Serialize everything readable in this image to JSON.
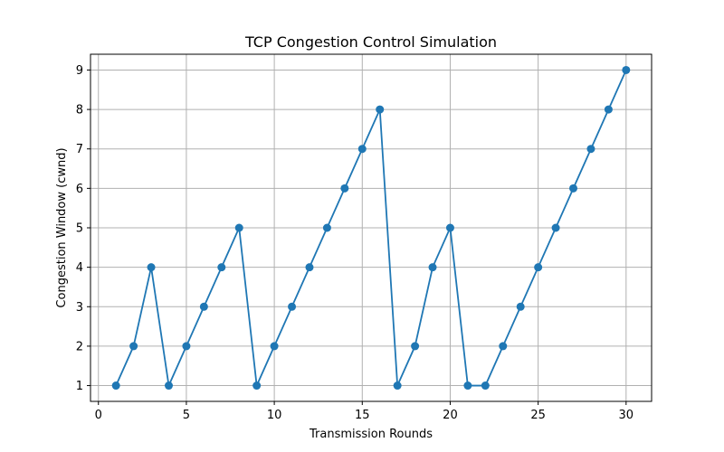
{
  "chart_data": {
    "type": "line",
    "title": "TCP Congestion Control Simulation",
    "xlabel": "Transmission Rounds",
    "ylabel": "Congestion Window (cwnd)",
    "xlim": [
      -0.45,
      31.45
    ],
    "ylim": [
      0.6,
      9.4
    ],
    "xticks": [
      0,
      5,
      10,
      15,
      20,
      25,
      30
    ],
    "yticks": [
      1,
      2,
      3,
      4,
      5,
      6,
      7,
      8,
      9
    ],
    "grid": true,
    "line_color": "#1f77b4",
    "marker": "circle",
    "series": [
      {
        "x": [
          1,
          2,
          3,
          4,
          5,
          6,
          7,
          8,
          9,
          10,
          11,
          12,
          13,
          14,
          15,
          16,
          17,
          18,
          19,
          20,
          21,
          22,
          23,
          24,
          25,
          26,
          27,
          28,
          29,
          30
        ],
        "y": [
          1,
          2,
          4,
          1,
          2,
          3,
          4,
          5,
          1,
          2,
          3,
          4,
          5,
          6,
          7,
          8,
          1,
          2,
          4,
          5,
          1,
          1,
          2,
          3,
          4,
          5,
          6,
          7,
          8,
          9
        ]
      }
    ]
  }
}
